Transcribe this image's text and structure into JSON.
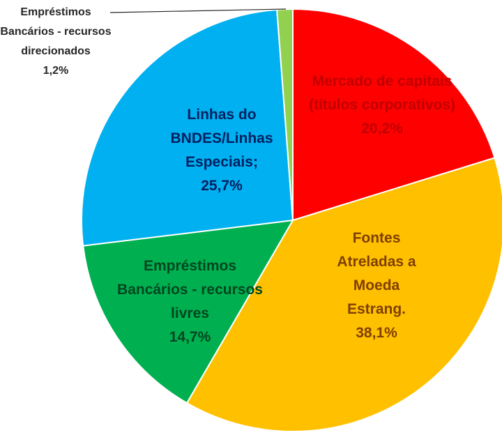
{
  "chart_data": {
    "type": "pie",
    "categories": [
      "Mercado de capitais (títulos corporativos)",
      "Fontes Atreladas a Moeda Estrang.",
      "Empréstimos Bancários - recursos livres",
      "Linhas do BNDES/Linhas Especiais;",
      "Empréstimos Bancários - recursos direcionados"
    ],
    "values": [
      20.2,
      38.1,
      14.7,
      25.7,
      1.2
    ],
    "value_labels": [
      "20,2%",
      "38,1%",
      "14,7%",
      "25,7%",
      "1,2%"
    ],
    "colors": [
      "#ff0000",
      "#ffc000",
      "#00b050",
      "#00b0f0",
      "#92d050"
    ]
  }
}
